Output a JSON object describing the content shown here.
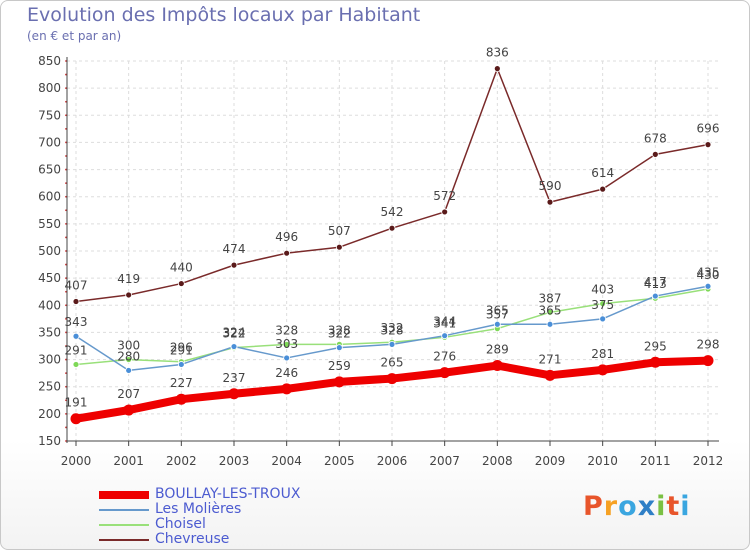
{
  "chart_data": {
    "type": "line",
    "title": "Evolution des Impôts locaux par Habitant",
    "subtitle": "(en € et par an)",
    "categories": [
      "2000",
      "2001",
      "2002",
      "2003",
      "2004",
      "2005",
      "2006",
      "2007",
      "2008",
      "2009",
      "2010",
      "2011",
      "2012"
    ],
    "ylim": [
      150,
      850
    ],
    "yticks": [
      150,
      200,
      250,
      300,
      350,
      400,
      450,
      500,
      550,
      600,
      650,
      700,
      750,
      800,
      850
    ],
    "grid": true,
    "legend_position": "bottom-left",
    "series": [
      {
        "name": "BOULLAY-LES-TROUX",
        "color": "#ee0000",
        "marker_color": "#ee0000",
        "values": [
          191,
          207,
          227,
          237,
          246,
          259,
          265,
          276,
          289,
          271,
          281,
          295,
          298
        ]
      },
      {
        "name": "Les Molières",
        "color": "#6699cc",
        "marker_color": "#4a8fd8",
        "values": [
          343,
          280,
          291,
          324,
          303,
          322,
          328,
          344,
          365,
          365,
          375,
          417,
          435
        ]
      },
      {
        "name": "Choisel",
        "color": "#99e07a",
        "marker_color": "#7ed857",
        "values": [
          291,
          300,
          296,
          322,
          328,
          328,
          332,
          341,
          357,
          387,
          403,
          413,
          430
        ]
      },
      {
        "name": "Chevreuse",
        "color": "#7a2a2a",
        "marker_color": "#5a1a1a",
        "values": [
          407,
          419,
          440,
          474,
          496,
          507,
          542,
          572,
          836,
          590,
          614,
          678,
          696
        ]
      }
    ]
  },
  "logo": {
    "text": "Proxiti",
    "letters": [
      "P",
      "r",
      "o",
      "x",
      "i",
      "t",
      "i"
    ],
    "colors": [
      "#e8552b",
      "#f6a123",
      "#3aa6e0",
      "#2f7fc6",
      "#7ac043",
      "#e8552b",
      "#3aa6e0"
    ]
  }
}
